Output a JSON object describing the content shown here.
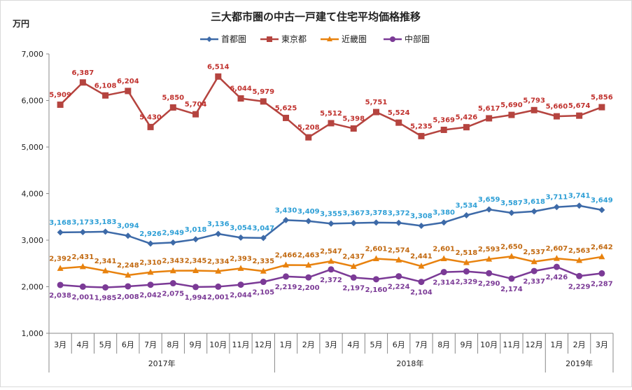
{
  "chart_data": {
    "type": "line",
    "title": "三大都市圏の中古一戸建て住宅平均価格推移",
    "unit_label": "万円",
    "ylim": [
      1000,
      7000
    ],
    "yticks": [
      "1,000",
      "2,000",
      "3,000",
      "4,000",
      "5,000",
      "6,000",
      "7,000"
    ],
    "ytick_values": [
      1000,
      2000,
      3000,
      4000,
      5000,
      6000,
      7000
    ],
    "legend_position": "top-center",
    "grid": false,
    "categories": [
      "3月",
      "4月",
      "5月",
      "6月",
      "7月",
      "8月",
      "9月",
      "10月",
      "11月",
      "12月",
      "1月",
      "2月",
      "3月",
      "4月",
      "5月",
      "6月",
      "7月",
      "8月",
      "9月",
      "10月",
      "11月",
      "12月",
      "1月",
      "2月",
      "3月"
    ],
    "years": [
      {
        "label": "2017年",
        "start": 0,
        "end": 9
      },
      {
        "label": "2018年",
        "start": 10,
        "end": 21
      },
      {
        "label": "2019年",
        "start": 22,
        "end": 24
      }
    ],
    "series": [
      {
        "name": "首都圏",
        "color": "#3d6aa8",
        "label_color": "#2e9fd6",
        "marker": "diamond",
        "label_pos": "above",
        "values": [
          3168,
          3173,
          3183,
          3094,
          2926,
          2949,
          3018,
          3136,
          3054,
          3047,
          3430,
          3409,
          3355,
          3367,
          3378,
          3372,
          3308,
          3380,
          3534,
          3659,
          3587,
          3618,
          3711,
          3741,
          3649
        ],
        "labels": [
          "3,168",
          "3,173",
          "3,183",
          "3,094",
          "2,926",
          "2,949",
          "3,018",
          "3,136",
          "3,054",
          "3,047",
          "3,430",
          "3,409",
          "3,355",
          "3,367",
          "3,378",
          "3,372",
          "3,308",
          "3,380",
          "3,534",
          "3,659",
          "3,587",
          "3,618",
          "3,711",
          "3,741",
          "3,649"
        ]
      },
      {
        "name": "東京都",
        "color": "#b5443f",
        "label_color": "#c0322e",
        "marker": "square",
        "label_pos": "above",
        "values": [
          5909,
          6387,
          6108,
          6204,
          5430,
          5850,
          5704,
          6514,
          6044,
          5979,
          5625,
          5208,
          5512,
          5398,
          5751,
          5524,
          5235,
          5369,
          5426,
          5617,
          5690,
          5793,
          5660,
          5674,
          5856
        ],
        "labels": [
          "5,909",
          "6,387",
          "6,108",
          "6,204",
          "5,430",
          "5,850",
          "5,704",
          "6,514",
          "6,044",
          "5,979",
          "5,625",
          "5,208",
          "5,512",
          "5,398",
          "5,751",
          "5,524",
          "5,235",
          "5,369",
          "5,426",
          "5,617",
          "5,690",
          "5,793",
          "5,660",
          "5,674",
          "5,856"
        ]
      },
      {
        "name": "近畿圏",
        "color": "#e8820e",
        "label_color": "#c26a12",
        "marker": "triangle",
        "label_pos": "above",
        "values": [
          2392,
          2431,
          2341,
          2248,
          2310,
          2343,
          2345,
          2334,
          2393,
          2335,
          2466,
          2463,
          2547,
          2437,
          2601,
          2574,
          2441,
          2601,
          2518,
          2593,
          2650,
          2537,
          2607,
          2563,
          2642
        ],
        "labels": [
          "2,392",
          "2,431",
          "2,341",
          "2,248",
          "2,310",
          "2,343",
          "2,345",
          "2,334",
          "2,393",
          "2,335",
          "2,466",
          "2,463",
          "2,547",
          "2,437",
          "2,601",
          "2,574",
          "2,441",
          "2,601",
          "2,518",
          "2,593",
          "2,650",
          "2,537",
          "2,607",
          "2,563",
          "2,642"
        ]
      },
      {
        "name": "中部圏",
        "color": "#7b3a96",
        "label_color": "#7b3a96",
        "marker": "circle",
        "label_pos": "below",
        "values": [
          2038,
          2001,
          1985,
          2008,
          2042,
          2075,
          1994,
          2001,
          2044,
          2105,
          2219,
          2200,
          2372,
          2197,
          2160,
          2224,
          2104,
          2314,
          2329,
          2290,
          2174,
          2337,
          2426,
          2229,
          2287
        ],
        "labels": [
          "2,038",
          "2,001",
          "1,985",
          "2,008",
          "2,042",
          "2,075",
          "1,994",
          "2,001",
          "2,044",
          "2,105",
          "2,219",
          "2,200",
          "2,372",
          "2,197",
          "2,160",
          "2,224",
          "2,104",
          "2,314",
          "2,329",
          "2,290",
          "2,174",
          "2,337",
          "2,426",
          "2,229",
          "2,287"
        ]
      }
    ]
  }
}
